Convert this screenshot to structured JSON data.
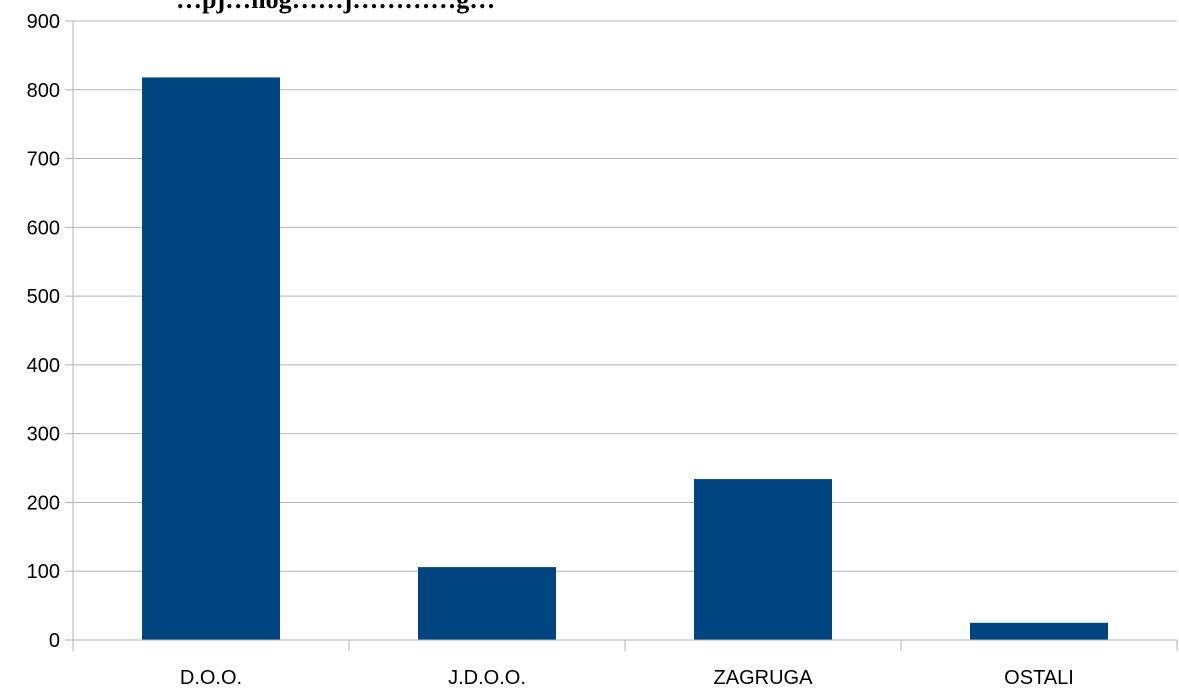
{
  "chart_data": {
    "type": "bar",
    "title": "…pj…nog……j…………g…",
    "xlabel": "",
    "ylabel": "",
    "categories": [
      "D.O.O.",
      "J.D.O.O.",
      "ZAGRUGA",
      "OSTALI"
    ],
    "series": [
      {
        "values": [
          818,
          106,
          234,
          25
        ]
      }
    ],
    "ylim": [
      0,
      900
    ],
    "yticks": [
      0,
      100,
      200,
      300,
      400,
      500,
      600,
      700,
      800,
      900
    ],
    "grid": true,
    "legend": "none",
    "bar_color": "#00457f"
  }
}
